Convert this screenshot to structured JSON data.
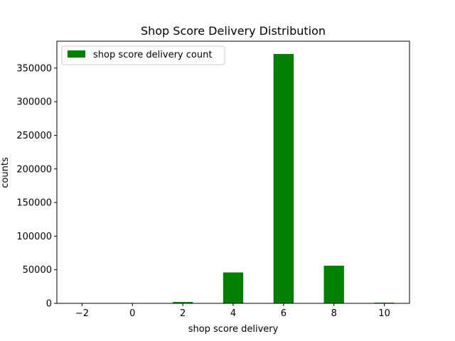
{
  "chart_data": {
    "type": "bar",
    "title": "Shop Score Delivery Distribution",
    "xlabel": "shop score delivery",
    "ylabel": "counts",
    "xlim": [
      -3,
      11
    ],
    "ylim": [
      0,
      390000
    ],
    "x_ticks": [
      -2,
      0,
      2,
      4,
      6,
      8,
      10
    ],
    "x_tick_labels": [
      "−2",
      "0",
      "2",
      "4",
      "6",
      "8",
      "10"
    ],
    "y_ticks": [
      0,
      50000,
      100000,
      150000,
      200000,
      250000,
      300000,
      350000
    ],
    "y_tick_labels": [
      "0",
      "50000",
      "100000",
      "150000",
      "200000",
      "250000",
      "300000",
      "350000"
    ],
    "bar_width": 0.8,
    "color": "#008000",
    "grid": false,
    "legend_position": "upper-left",
    "series": [
      {
        "name": "shop score delivery count",
        "x": [
          2,
          4,
          6,
          8,
          10
        ],
        "values": [
          2000,
          46000,
          371000,
          56000,
          1000
        ]
      }
    ]
  }
}
